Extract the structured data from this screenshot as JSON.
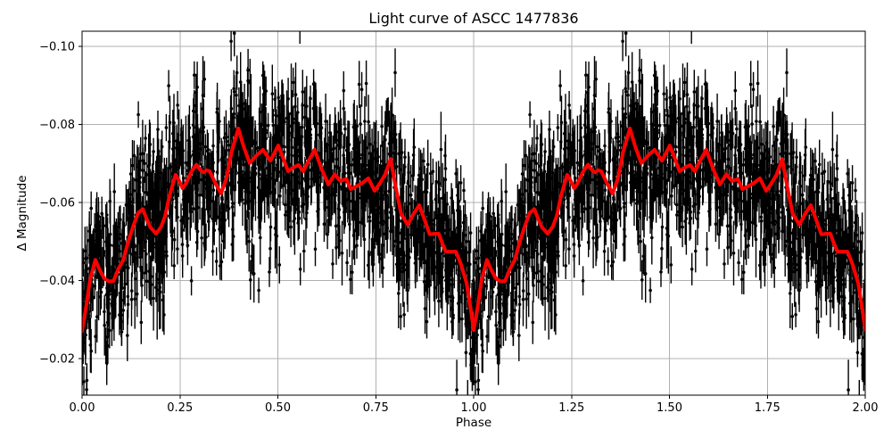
{
  "chart_data": {
    "type": "scatter",
    "title": "Light curve of ASCC 1477836",
    "xlabel": "Phase",
    "ylabel": "Δ Magnitude",
    "xlim": [
      0.0,
      2.0
    ],
    "ylim_bottom": -0.0106,
    "ylim_top": -0.1039,
    "y_axis_inverted": true,
    "grid": true,
    "grid_color": "#b0b0b0",
    "axes_color": "#000000",
    "background_color": "#ffffff",
    "x_ticks": [
      0.0,
      0.25,
      0.5,
      0.75,
      1.0,
      1.25,
      1.5,
      1.75,
      2.0
    ],
    "x_tick_labels": [
      "0.00",
      "0.25",
      "0.50",
      "0.75",
      "1.00",
      "1.25",
      "1.50",
      "1.75",
      "2.00"
    ],
    "y_ticks": [
      -0.1,
      -0.08,
      -0.06,
      -0.04,
      -0.02
    ],
    "y_tick_labels": [
      "−0.10",
      "−0.08",
      "−0.06",
      "−0.04",
      "−0.02"
    ],
    "series": [
      {
        "name": "phased-observations",
        "type": "scatter-errorbar",
        "color": "#000000",
        "marker_radius": 1.8,
        "errorbar_width": 1.4,
        "periods_plotted": 2,
        "generated_noise": {
          "n_per_period": 1600,
          "seed": 7,
          "std_mag": 0.0095,
          "outlier_down_fraction": 0.04,
          "outlier_up_fraction": 0.012,
          "errorbar_halflength_base": 0.0032,
          "errorbar_halflength_spread": 0.0028
        }
      },
      {
        "name": "smoothed-light-curve",
        "type": "line",
        "color": "#ff0000",
        "line_width": 4,
        "periods_plotted": 2,
        "period_phase": [
          0.0,
          0.01,
          0.02,
          0.034,
          0.046,
          0.057,
          0.068,
          0.08,
          0.093,
          0.105,
          0.118,
          0.131,
          0.143,
          0.155,
          0.166,
          0.174,
          0.189,
          0.202,
          0.212,
          0.223,
          0.234,
          0.239,
          0.248,
          0.257,
          0.266,
          0.28,
          0.292,
          0.302,
          0.31,
          0.318,
          0.326,
          0.34,
          0.355,
          0.368,
          0.382,
          0.399,
          0.412,
          0.428,
          0.445,
          0.462,
          0.481,
          0.501,
          0.513,
          0.526,
          0.54,
          0.553,
          0.565,
          0.58,
          0.594,
          0.61,
          0.629,
          0.645,
          0.66,
          0.675,
          0.686,
          0.702,
          0.716,
          0.731,
          0.747,
          0.76,
          0.774,
          0.788,
          0.801,
          0.815,
          0.832,
          0.846,
          0.861,
          0.875,
          0.888,
          0.9,
          0.911,
          0.92,
          0.929,
          0.943,
          0.955,
          0.968,
          0.982,
          0.992,
          1.0
        ],
        "period_mag": [
          -0.027,
          -0.033,
          -0.04,
          -0.0453,
          -0.0425,
          -0.0405,
          -0.0398,
          -0.0398,
          -0.043,
          -0.0452,
          -0.05,
          -0.054,
          -0.0573,
          -0.0583,
          -0.0555,
          -0.0537,
          -0.052,
          -0.0538,
          -0.0565,
          -0.0616,
          -0.0655,
          -0.0671,
          -0.0655,
          -0.0636,
          -0.065,
          -0.068,
          -0.0697,
          -0.0683,
          -0.0677,
          -0.0683,
          -0.068,
          -0.065,
          -0.0623,
          -0.066,
          -0.073,
          -0.079,
          -0.0745,
          -0.0701,
          -0.072,
          -0.0735,
          -0.0707,
          -0.0746,
          -0.0715,
          -0.068,
          -0.069,
          -0.0696,
          -0.068,
          -0.071,
          -0.0735,
          -0.069,
          -0.0646,
          -0.0672,
          -0.0655,
          -0.066,
          -0.0634,
          -0.0642,
          -0.065,
          -0.0662,
          -0.063,
          -0.0648,
          -0.0672,
          -0.0712,
          -0.064,
          -0.057,
          -0.0543,
          -0.057,
          -0.0593,
          -0.0555,
          -0.0518,
          -0.052,
          -0.052,
          -0.0495,
          -0.0474,
          -0.0474,
          -0.0474,
          -0.044,
          -0.0393,
          -0.033,
          -0.0273
        ]
      }
    ]
  }
}
